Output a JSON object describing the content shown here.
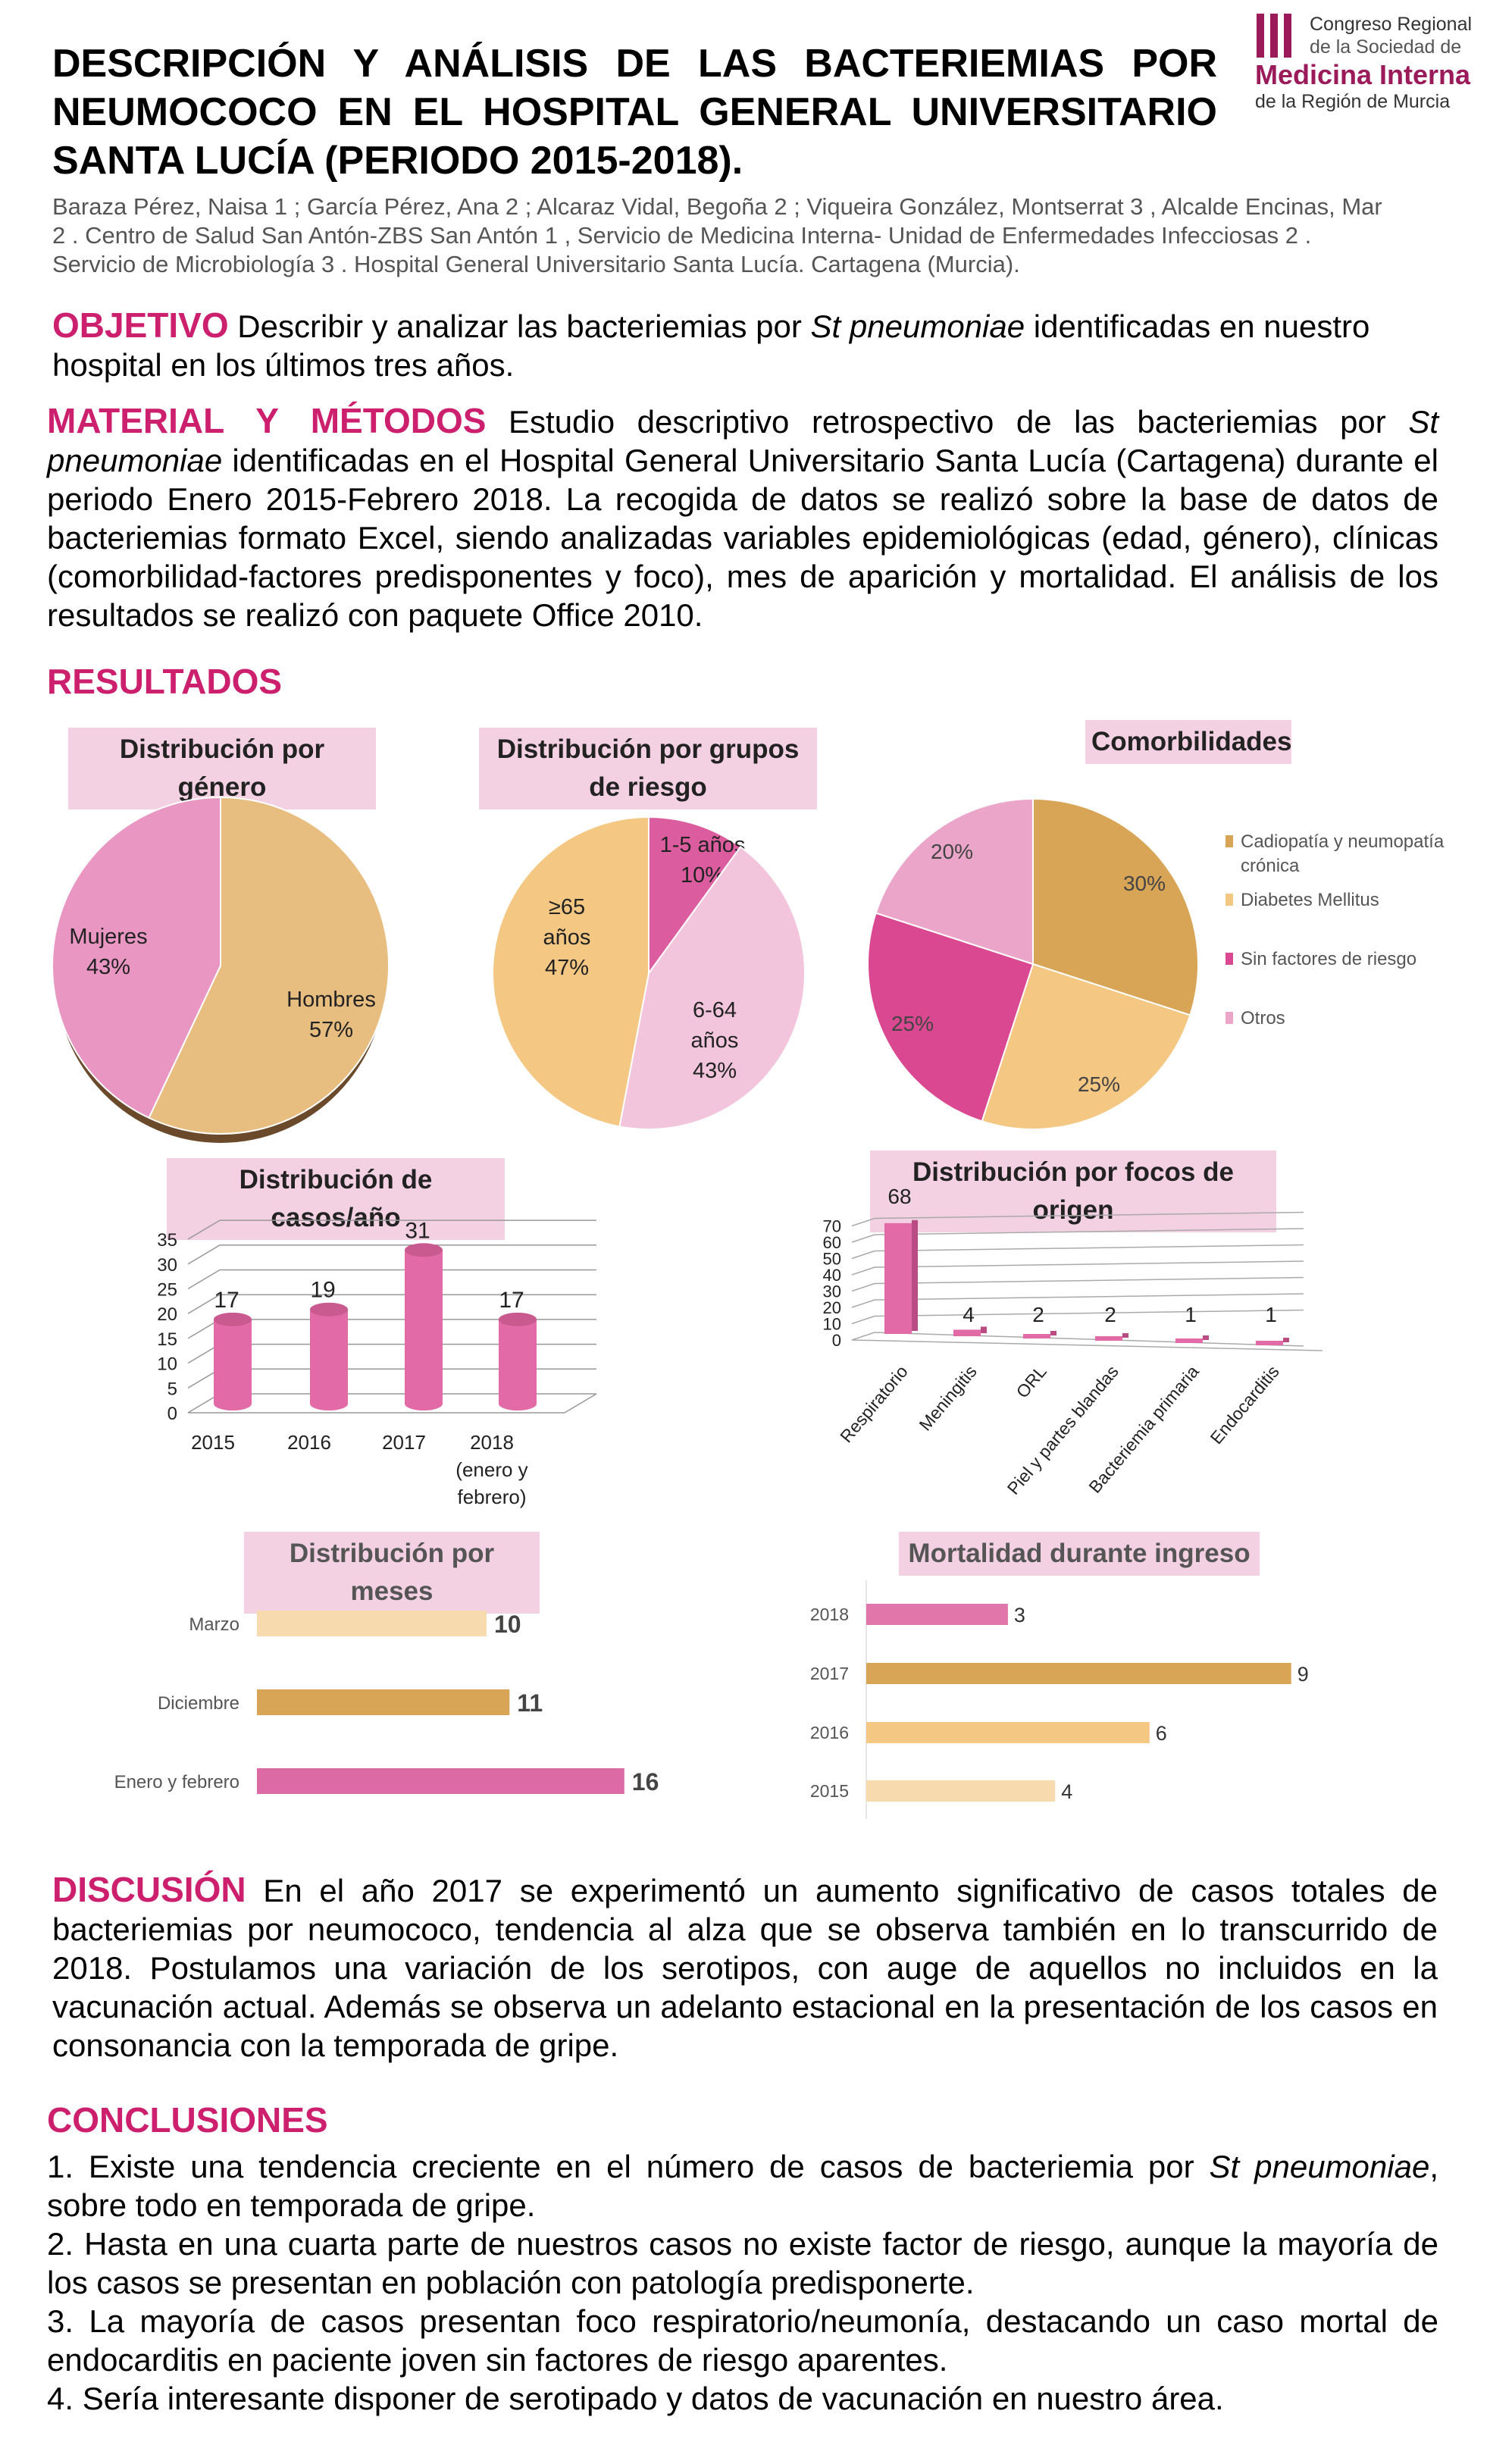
{
  "header": {
    "title_lines": [
      "DESCRIPCIÓN Y ANÁLISIS DE LAS BACTERIEMIAS POR",
      "NEUMOCOCO EN EL HOSPITAL GENERAL UNIVERSITARIO",
      "SANTA LUCÍA (PERIODO 2015-2018)."
    ],
    "authors_lines": [
      "Baraza Pérez, Naisa 1 ; García Pérez, Ana 2 ; Alcaraz Vidal, Begoña 2 ; Viqueira González, Montserrat 3 , Alcalde Encinas, Mar",
      "2 . Centro de Salud San Antón-ZBS San Antón 1 , Servicio de Medicina Interna- Unidad de Enfermedades Infecciosas 2 .",
      "Servicio de Microbiología 3 . Hospital General Universitario Santa Lucía. Cartagena (Murcia)."
    ],
    "logo": {
      "line1": "Congreso Regional",
      "line2": "de la Sociedad de",
      "line3": "Medicina Interna",
      "line4": "de la Región de Murcia",
      "color": "#9b1b5a"
    }
  },
  "objetivo": {
    "heading": "OBJETIVO",
    "text_before": " Describir y analizar las bacteriemias por ",
    "italic": "St pneumoniae",
    "text_after": " identificadas en nuestro hospital en los últimos tres años."
  },
  "material": {
    "heading": "MATERIAL Y MÉTODOS",
    "text_before": " Estudio descriptivo retrospectivo de las bacteriemias por ",
    "italic": "St pneumoniae",
    "text_after": " identificadas en el Hospital General Universitario Santa Lucía (Cartagena) durante el periodo Enero 2015-Febrero 2018. La recogida de datos se realizó sobre la base de datos de bacteriemias formato Excel, siendo analizadas variables epidemiológicas (edad, género), clínicas (comorbilidad-factores predisponentes y foco), mes de aparición y mortalidad. El análisis de los resultados se realizó con paquete Office 2010."
  },
  "resultados": {
    "heading": "RESULTADOS"
  },
  "colors": {
    "accent": "#cc1f6e",
    "title_bg": "#f3d1e3",
    "pink_dark": "#d94891",
    "pink_mid": "#dc6aa4",
    "pink_light": "#f2c5dc",
    "tan_dark": "#d8a556",
    "tan": "#f4c783",
    "tan_light": "#f7dbae"
  },
  "chart_data": [
    {
      "id": "genero",
      "type": "pie",
      "title": "Distribución por género",
      "slices": [
        {
          "label": "Hombres",
          "value": 57,
          "display": "57%",
          "color": "#e8bd80"
        },
        {
          "label": "Mujeres",
          "value": 43,
          "display": "43%",
          "color": "#e996c3"
        }
      ]
    },
    {
      "id": "riesgo",
      "type": "pie",
      "title": "Distribución por grupos de riesgo",
      "slices": [
        {
          "label": "1-5 años",
          "value": 10,
          "display": "10%",
          "color": "#dc5d9f"
        },
        {
          "label": "6-64 años",
          "value": 43,
          "display": "43%",
          "color": "#f2c5dc"
        },
        {
          "label": "≥65 años",
          "value": 47,
          "display": "47%",
          "color": "#f4c783"
        }
      ]
    },
    {
      "id": "comorbilidades",
      "type": "pie",
      "title": "Comorbilidades",
      "legend": "right",
      "slices": [
        {
          "label": "Cadiopatía y neumopatía crónica",
          "value": 30,
          "display": "30%",
          "color": "#d8a556"
        },
        {
          "label": "Diabetes Mellitus",
          "value": 25,
          "display": "25%",
          "color": "#f4c783"
        },
        {
          "label": "Sin factores de riesgo",
          "value": 25,
          "display": "25%",
          "color": "#d94891"
        },
        {
          "label": "Otros",
          "value": 20,
          "display": "20%",
          "color": "#eba5c8"
        }
      ]
    },
    {
      "id": "casos",
      "type": "bar",
      "title": "Distribución de  casos/año",
      "categories": [
        "2015",
        "2016",
        "2017",
        "2018 (enero y febrero)"
      ],
      "values": [
        17,
        19,
        31,
        17
      ],
      "ylim": [
        0,
        35
      ],
      "yticks": [
        0,
        5,
        10,
        15,
        20,
        25,
        30,
        35
      ],
      "grid": true,
      "color": "#e26aa6"
    },
    {
      "id": "focos",
      "type": "bar",
      "title": "Distribución por focos de origen",
      "categories": [
        "Respiratorio",
        "Meningitis",
        "ORL",
        "Piel y partes blandas",
        "Bacteriemia primaria",
        "Endocarditis"
      ],
      "values": [
        68,
        4,
        2,
        2,
        1,
        1
      ],
      "ylim": [
        0,
        70
      ],
      "yticks": [
        0,
        10,
        20,
        30,
        40,
        50,
        60,
        70
      ],
      "grid": true,
      "color": "#e26aa6"
    },
    {
      "id": "meses",
      "type": "bar",
      "orientation": "horizontal",
      "title": "Distribución por meses",
      "categories": [
        "Marzo",
        "Diciembre",
        "Enero y febrero"
      ],
      "values": [
        10,
        11,
        16
      ],
      "colors": [
        "#f7dbae",
        "#d8a556",
        "#dc6aa4"
      ]
    },
    {
      "id": "mortalidad",
      "type": "bar",
      "orientation": "horizontal",
      "title": "Mortalidad durante ingreso",
      "categories": [
        "2018",
        "2017",
        "2016",
        "2015"
      ],
      "values": [
        3,
        9,
        6,
        4
      ],
      "colors": [
        "#e076aa",
        "#d8a556",
        "#f4c783",
        "#f7dbae"
      ]
    }
  ],
  "discusion": {
    "heading": "DISCUSIÓN",
    "text": " En el año 2017 se experimentó un aumento significativo de casos totales de bacteriemias por neumococo, tendencia al alza que se observa también en lo transcurrido de 2018. Postulamos una variación de los serotipos, con auge de aquellos no incluidos en la vacunación actual. Además se observa un adelanto estacional en la presentación de los casos en consonancia con la temporada de gripe."
  },
  "conclusiones": {
    "heading": "CONCLUSIONES",
    "items": [
      {
        "before": "1. Existe una tendencia creciente en el número de casos de bacteriemia por ",
        "italic": "St pneumoniae",
        "after": ", sobre todo en temporada de gripe."
      },
      {
        "before": "2. Hasta en una cuarta parte de nuestros casos no existe factor de riesgo, aunque la mayoría de los casos se presentan en población con patología predisponerte.",
        "italic": "",
        "after": ""
      },
      {
        "before": "3. La mayoría de casos presentan foco respiratorio/neumonía, destacando un caso mortal de endocarditis en paciente joven sin factores de riesgo aparentes.",
        "italic": "",
        "after": ""
      },
      {
        "before": "4. Sería interesante disponer de serotipado y datos de vacunación en nuestro área.",
        "italic": "",
        "after": ""
      }
    ]
  }
}
